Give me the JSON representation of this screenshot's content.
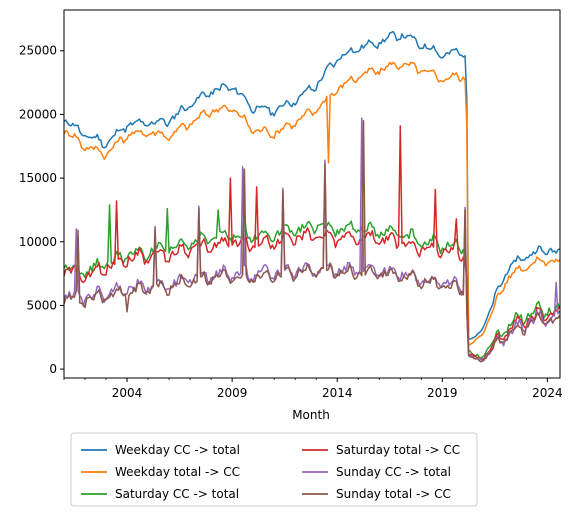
{
  "chart_data": {
    "type": "line",
    "title": "",
    "xlabel": "Month",
    "ylabel": "",
    "xlim": [
      2001.0,
      2024.6
    ],
    "ylim": [
      -700,
      28200
    ],
    "x_ticks": [
      2004,
      2009,
      2014,
      2019,
      2024
    ],
    "x_tick_labels": [
      "2004",
      "2009",
      "2014",
      "2019",
      "2024"
    ],
    "y_ticks": [
      0,
      5000,
      10000,
      15000,
      20000,
      25000
    ],
    "y_tick_labels": [
      "0",
      "5000",
      "10000",
      "15000",
      "20000",
      "25000"
    ],
    "grid": false,
    "legend_placement": "below",
    "legend_columns": 2,
    "x_start": "2001-01",
    "x_step": "month",
    "series": [
      {
        "name": "Weekday CC -> total",
        "color": "#1f77b4",
        "anchors": [
          [
            2001.0,
            19600
          ],
          [
            2002.0,
            18400
          ],
          [
            2003.0,
            17700
          ],
          [
            2004.0,
            19200
          ],
          [
            2005.0,
            19300
          ],
          [
            2006.0,
            19500
          ],
          [
            2007.0,
            20800
          ],
          [
            2008.0,
            21800
          ],
          [
            2009.0,
            22200
          ],
          [
            2010.0,
            20500
          ],
          [
            2011.0,
            20300
          ],
          [
            2012.0,
            21100
          ],
          [
            2013.0,
            22300
          ],
          [
            2014.0,
            24400
          ],
          [
            2015.0,
            25200
          ],
          [
            2016.0,
            25700
          ],
          [
            2017.0,
            26300
          ],
          [
            2018.0,
            25500
          ],
          [
            2019.0,
            24700
          ],
          [
            2020.0,
            24900
          ],
          [
            2020.15,
            24700
          ],
          [
            2020.25,
            2400
          ],
          [
            2020.6,
            2500
          ],
          [
            2021.0,
            3500
          ],
          [
            2021.5,
            5500
          ],
          [
            2022.0,
            7600
          ],
          [
            2022.5,
            8400
          ],
          [
            2023.0,
            8900
          ],
          [
            2023.5,
            9200
          ],
          [
            2024.0,
            9400
          ],
          [
            2024.6,
            9100
          ]
        ],
        "amplitude": 420,
        "dips": [],
        "spikes": []
      },
      {
        "name": "Weekday total -> CC",
        "color": "#ff7f0e",
        "anchors": [
          [
            2001.0,
            18800
          ],
          [
            2002.0,
            17500
          ],
          [
            2003.0,
            16900
          ],
          [
            2004.0,
            18400
          ],
          [
            2005.0,
            18600
          ],
          [
            2006.0,
            18300
          ],
          [
            2007.0,
            19300
          ],
          [
            2008.0,
            20300
          ],
          [
            2009.0,
            20500
          ],
          [
            2010.0,
            18800
          ],
          [
            2011.0,
            18500
          ],
          [
            2012.0,
            19400
          ],
          [
            2013.0,
            20400
          ],
          [
            2014.0,
            22000
          ],
          [
            2015.0,
            23000
          ],
          [
            2016.0,
            23500
          ],
          [
            2017.0,
            24000
          ],
          [
            2018.0,
            23500
          ],
          [
            2019.0,
            22800
          ],
          [
            2020.0,
            23000
          ],
          [
            2020.15,
            22700
          ],
          [
            2020.25,
            1900
          ],
          [
            2020.6,
            2200
          ],
          [
            2021.0,
            3000
          ],
          [
            2021.5,
            5000
          ],
          [
            2022.0,
            6900
          ],
          [
            2022.5,
            7700
          ],
          [
            2023.0,
            8100
          ],
          [
            2023.5,
            8400
          ],
          [
            2024.0,
            8600
          ],
          [
            2024.6,
            8300
          ]
        ],
        "amplitude": 400,
        "dips": [
          [
            2013.6,
            16200
          ]
        ],
        "spikes": []
      },
      {
        "name": "Saturday CC -> total",
        "color": "#2ca02c",
        "anchors": [
          [
            2001.0,
            8200
          ],
          [
            2002.0,
            7600
          ],
          [
            2003.0,
            8300
          ],
          [
            2004.0,
            9000
          ],
          [
            2005.0,
            9200
          ],
          [
            2006.0,
            9400
          ],
          [
            2007.0,
            10000
          ],
          [
            2008.0,
            10300
          ],
          [
            2009.0,
            10500
          ],
          [
            2010.0,
            10400
          ],
          [
            2011.0,
            10700
          ],
          [
            2012.0,
            11000
          ],
          [
            2013.0,
            11200
          ],
          [
            2014.0,
            11000
          ],
          [
            2015.0,
            11000
          ],
          [
            2016.0,
            10800
          ],
          [
            2017.0,
            10700
          ],
          [
            2018.0,
            10000
          ],
          [
            2019.0,
            9800
          ],
          [
            2020.0,
            9600
          ],
          [
            2020.15,
            8600
          ],
          [
            2020.25,
            1500
          ],
          [
            2020.6,
            900
          ],
          [
            2021.0,
            1200
          ],
          [
            2021.5,
            2200
          ],
          [
            2022.0,
            3200
          ],
          [
            2022.5,
            3800
          ],
          [
            2023.0,
            4200
          ],
          [
            2023.5,
            4500
          ],
          [
            2024.0,
            4700
          ],
          [
            2024.6,
            4500
          ]
        ],
        "amplitude": 650,
        "dips": [],
        "spikes": [
          [
            2003.2,
            12900
          ],
          [
            2005.9,
            12600
          ],
          [
            2008.3,
            12500
          ],
          [
            2009.6,
            12300
          ]
        ]
      },
      {
        "name": "Saturday total -> CC",
        "color": "#d62728",
        "anchors": [
          [
            2001.0,
            7900
          ],
          [
            2002.0,
            7200
          ],
          [
            2003.0,
            8000
          ],
          [
            2004.0,
            8700
          ],
          [
            2005.0,
            8900
          ],
          [
            2006.0,
            9000
          ],
          [
            2007.0,
            9500
          ],
          [
            2008.0,
            9700
          ],
          [
            2009.0,
            9900
          ],
          [
            2010.0,
            9800
          ],
          [
            2011.0,
            10000
          ],
          [
            2012.0,
            10300
          ],
          [
            2013.0,
            10500
          ],
          [
            2014.0,
            10300
          ],
          [
            2015.0,
            10300
          ],
          [
            2016.0,
            10200
          ],
          [
            2017.0,
            10000
          ],
          [
            2018.0,
            9500
          ],
          [
            2019.0,
            9300
          ],
          [
            2020.0,
            9100
          ],
          [
            2020.15,
            8200
          ],
          [
            2020.25,
            1300
          ],
          [
            2020.6,
            800
          ],
          [
            2021.0,
            1000
          ],
          [
            2021.5,
            2000
          ],
          [
            2022.0,
            2900
          ],
          [
            2022.5,
            3500
          ],
          [
            2023.0,
            3900
          ],
          [
            2023.5,
            4200
          ],
          [
            2024.0,
            4400
          ],
          [
            2024.6,
            4200
          ]
        ],
        "amplitude": 650,
        "dips": [],
        "spikes": [
          [
            2003.5,
            13200
          ],
          [
            2008.9,
            15000
          ],
          [
            2010.2,
            14300
          ],
          [
            2017.0,
            19100
          ],
          [
            2018.7,
            14100
          ],
          [
            2019.7,
            11800
          ]
        ]
      },
      {
        "name": "Sunday CC -> total",
        "color": "#9467bd",
        "anchors": [
          [
            2001.0,
            5900
          ],
          [
            2002.0,
            5600
          ],
          [
            2003.0,
            6000
          ],
          [
            2004.0,
            6300
          ],
          [
            2005.0,
            6500
          ],
          [
            2006.0,
            6600
          ],
          [
            2007.0,
            7100
          ],
          [
            2008.0,
            7400
          ],
          [
            2009.0,
            7500
          ],
          [
            2010.0,
            7400
          ],
          [
            2011.0,
            7600
          ],
          [
            2012.0,
            7800
          ],
          [
            2013.0,
            7900
          ],
          [
            2014.0,
            7800
          ],
          [
            2015.0,
            7800
          ],
          [
            2016.0,
            7700
          ],
          [
            2017.0,
            7600
          ],
          [
            2018.0,
            7100
          ],
          [
            2019.0,
            6800
          ],
          [
            2020.0,
            6500
          ],
          [
            2020.15,
            5200
          ],
          [
            2020.25,
            1100
          ],
          [
            2020.6,
            700
          ],
          [
            2021.0,
            900
          ],
          [
            2021.5,
            1800
          ],
          [
            2022.0,
            2600
          ],
          [
            2022.5,
            3200
          ],
          [
            2023.0,
            3600
          ],
          [
            2023.5,
            3900
          ],
          [
            2024.0,
            4100
          ],
          [
            2024.6,
            4000
          ]
        ],
        "amplitude": 650,
        "dips": [],
        "spikes": [
          [
            2001.6,
            11000
          ],
          [
            2005.3,
            11200
          ],
          [
            2007.4,
            12800
          ],
          [
            2009.5,
            15900
          ],
          [
            2011.4,
            14200
          ],
          [
            2013.4,
            16400
          ],
          [
            2015.2,
            19700
          ],
          [
            2020.05,
            12700
          ],
          [
            2024.4,
            6800
          ]
        ]
      },
      {
        "name": "Sunday total -> CC",
        "color": "#8c564b",
        "anchors": [
          [
            2001.0,
            5700
          ],
          [
            2002.0,
            5400
          ],
          [
            2003.0,
            5800
          ],
          [
            2004.0,
            6100
          ],
          [
            2005.0,
            6300
          ],
          [
            2006.0,
            6400
          ],
          [
            2007.0,
            6900
          ],
          [
            2008.0,
            7200
          ],
          [
            2009.0,
            7300
          ],
          [
            2010.0,
            7200
          ],
          [
            2011.0,
            7400
          ],
          [
            2012.0,
            7600
          ],
          [
            2013.0,
            7700
          ],
          [
            2014.0,
            7600
          ],
          [
            2015.0,
            7600
          ],
          [
            2016.0,
            7500
          ],
          [
            2017.0,
            7400
          ],
          [
            2018.0,
            6900
          ],
          [
            2019.0,
            6600
          ],
          [
            2020.0,
            6300
          ],
          [
            2020.15,
            5000
          ],
          [
            2020.25,
            1000
          ],
          [
            2020.6,
            650
          ],
          [
            2021.0,
            850
          ],
          [
            2021.5,
            1700
          ],
          [
            2022.0,
            2500
          ],
          [
            2022.5,
            3000
          ],
          [
            2023.0,
            3400
          ],
          [
            2023.5,
            3700
          ],
          [
            2024.0,
            3900
          ],
          [
            2024.6,
            3800
          ]
        ],
        "amplitude": 620,
        "dips": [
          [
            2004.0,
            4500
          ]
        ],
        "spikes": [
          [
            2001.65,
            10900
          ],
          [
            2005.35,
            11000
          ],
          [
            2007.45,
            12600
          ],
          [
            2009.55,
            15700
          ],
          [
            2011.45,
            14000
          ],
          [
            2013.45,
            16100
          ],
          [
            2015.25,
            19500
          ],
          [
            2020.1,
            12500
          ]
        ]
      }
    ]
  }
}
